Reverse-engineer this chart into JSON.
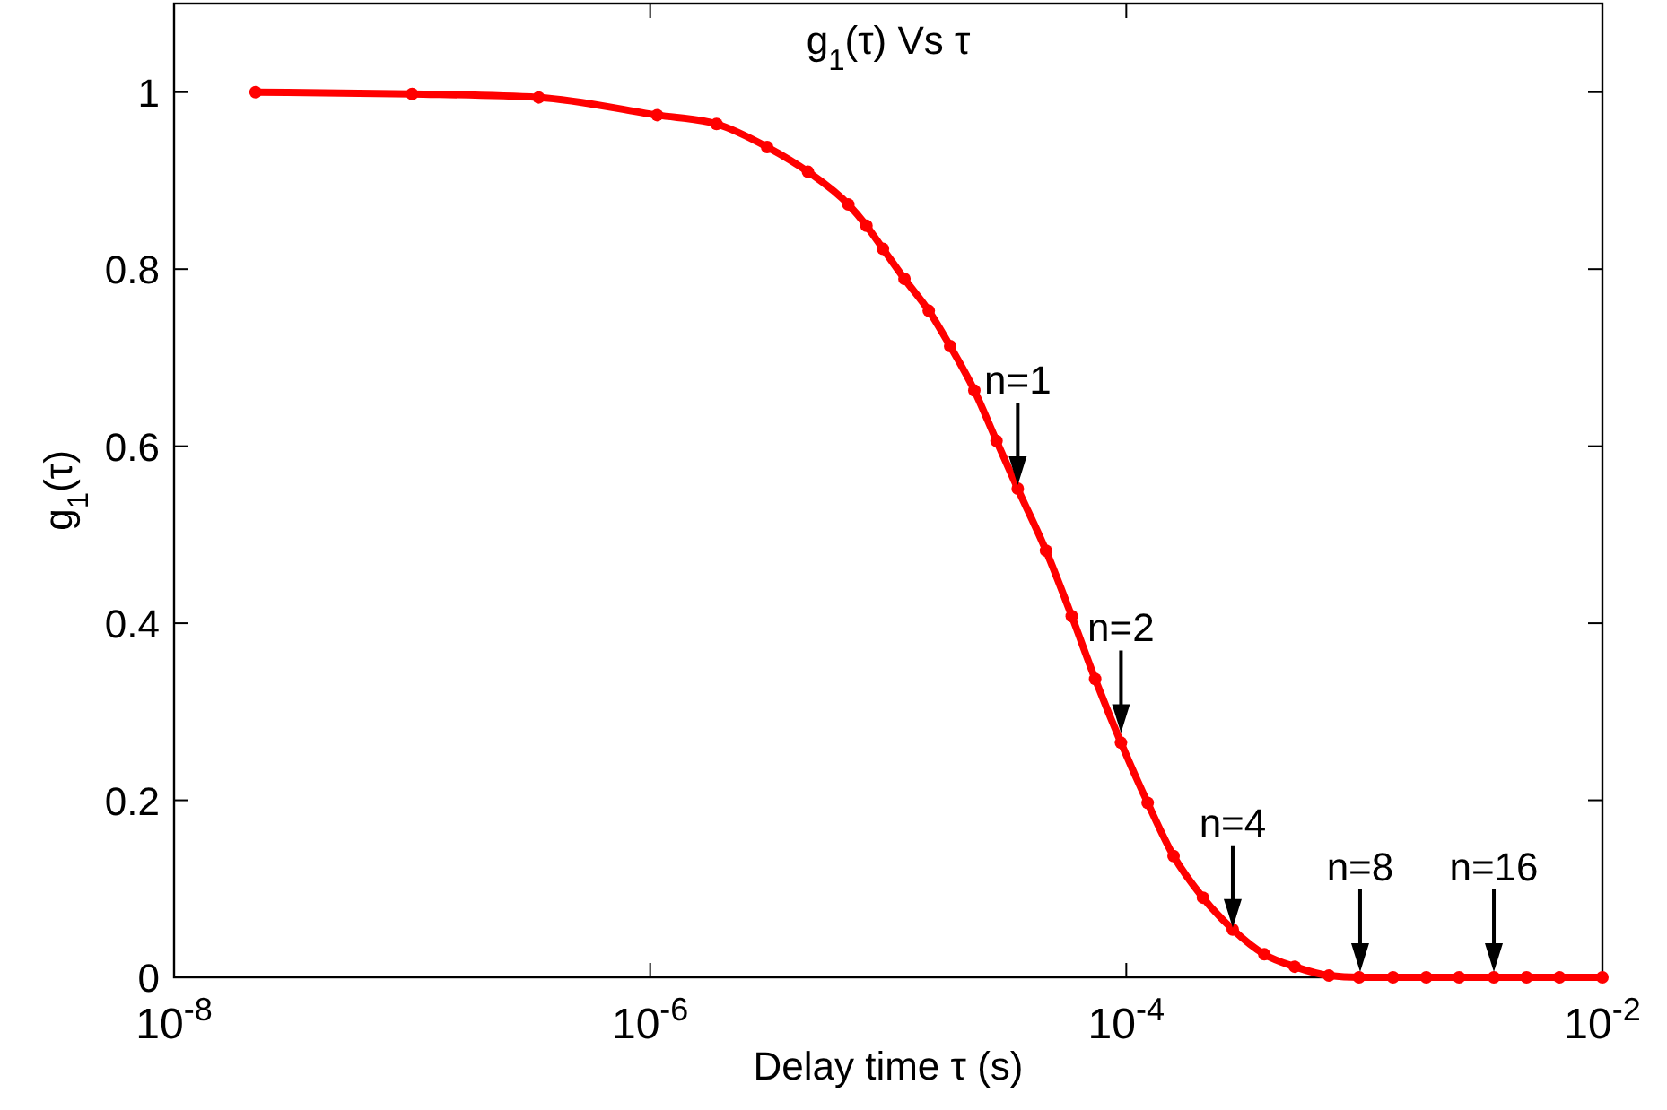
{
  "chart_data": {
    "type": "line",
    "title": "g$_{1}$(τ) Vs τ",
    "xlabel": "Delay time τ (s)",
    "ylabel": "g$_{1}$(τ)",
    "log": "x",
    "xlim": [
      1e-08,
      0.01
    ],
    "xticks": [
      {
        "value": 1e-08,
        "label": "10$^{-8}$"
      },
      {
        "value": 1e-06,
        "label": "10$^{-6}$"
      },
      {
        "value": 0.0001,
        "label": "10$^{-4}$"
      },
      {
        "value": 0.01,
        "label": "10$^{-2}$"
      }
    ],
    "ylim": [
      0,
      1.1
    ],
    "yticks": [
      0,
      0.2,
      0.4,
      0.6,
      0.8,
      1
    ],
    "grid": false,
    "marker": "circle",
    "line_style": "solid",
    "series": [
      {
        "color": "#ff0000",
        "x": [
          2.2e-08,
          1e-07,
          3.4e-07,
          1.07e-06,
          1.9e-06,
          3.1e-06,
          4.6e-06,
          6.8e-06,
          8.1e-06,
          9.5e-06,
          1.17e-05,
          1.48e-05,
          1.82e-05,
          2.3e-05,
          2.85e-05,
          3.5e-05,
          4.6e-05,
          5.9e-05,
          7.4e-05,
          9.5e-05,
          0.000123,
          0.000158,
          0.00021,
          0.00028,
          0.00038,
          0.00051,
          0.00071,
          0.00095,
          0.00132,
          0.00182,
          0.0025,
          0.0035,
          0.0048,
          0.0066,
          0.01
        ],
        "values": [
          1.0,
          0.998,
          0.994,
          0.974,
          0.964,
          0.938,
          0.91,
          0.873,
          0.849,
          0.823,
          0.789,
          0.753,
          0.713,
          0.663,
          0.606,
          0.552,
          0.482,
          0.408,
          0.337,
          0.265,
          0.197,
          0.137,
          0.09,
          0.054,
          0.026,
          0.012,
          0.002,
          0,
          0,
          0,
          0,
          0,
          0,
          0,
          0
        ]
      }
    ],
    "annotations": [
      {
        "text": "n=1",
        "x": 3.5e-05,
        "y": 0.55
      },
      {
        "text": "n=2",
        "x": 9.5e-05,
        "y": 0.27
      },
      {
        "text": "n=4",
        "x": 0.00028,
        "y": 0.05
      },
      {
        "text": "n=8",
        "x": 0.00096,
        "y": 0
      },
      {
        "text": "n=16",
        "x": 0.0035,
        "y": 0
      }
    ]
  }
}
